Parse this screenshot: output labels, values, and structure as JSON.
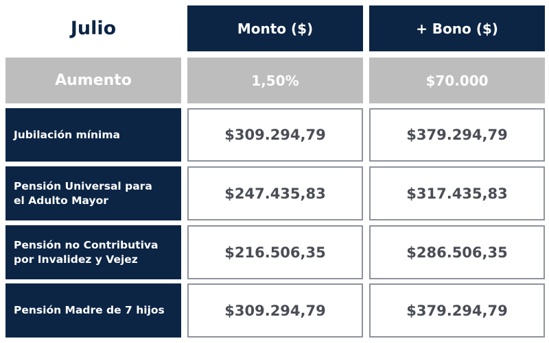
{
  "header": {
    "month": "Julio",
    "col_monto": "Monto ($)",
    "col_bono": "+ Bono ($)"
  },
  "aumento": {
    "label": "Aumento",
    "percent": "1,50%",
    "bono": "$70.000"
  },
  "rows": [
    {
      "label_lines": [
        "Jubilación mínima"
      ],
      "monto": "$309.294,79",
      "con_bono": "$379.294,79"
    },
    {
      "label_lines": [
        "Pensión Universal para",
        "el Adulto Mayor"
      ],
      "monto": "$247.435,83",
      "con_bono": "$317.435,83"
    },
    {
      "label_lines": [
        "Pensión no Contributiva",
        "por Invalidez y Vejez"
      ],
      "monto": "$216.506,35",
      "con_bono": "$286.506,35"
    },
    {
      "label_lines": [
        "Pensión Madre de 7 hijos"
      ],
      "monto": "$309.294,79",
      "con_bono": "$379.294,79"
    }
  ],
  "colors": {
    "navy": "#0c2545",
    "grey": "#bdbdbd",
    "text_dark": "#4a4d55",
    "border": "#8d929b"
  }
}
